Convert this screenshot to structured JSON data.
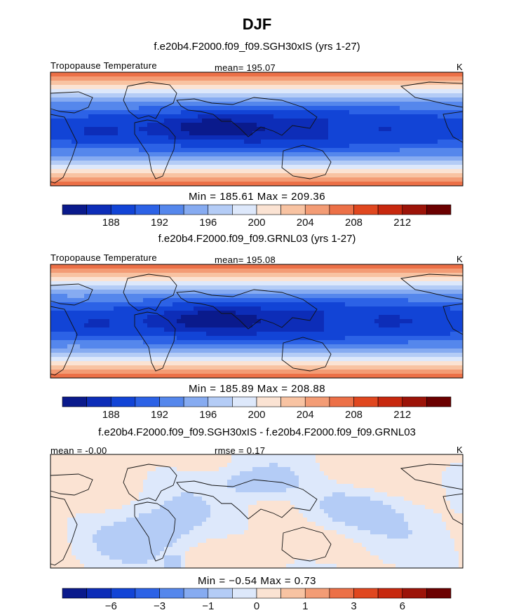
{
  "title": "DJF",
  "colors": {
    "scale": [
      "#0a1a8c",
      "#0d2db8",
      "#1244d6",
      "#2c62e6",
      "#5587ec",
      "#86abf1",
      "#b4ccf6",
      "#dde8fb",
      "#fbe3d3",
      "#f8c3a2",
      "#f39c75",
      "#ec7047",
      "#e0471f",
      "#c7280e",
      "#9c1308",
      "#6b0000"
    ]
  },
  "chart_data": [
    {
      "type": "heatmap",
      "title": "f.e20b4.F2000.f09_f09.SGH30xIS (yrs 1-27)",
      "variable": "Tropopause Temperature",
      "stat_label": "mean= 195.07",
      "units": "K",
      "min_max_text": "Min = 185.61 Max = 209.36",
      "min": 185.61,
      "max": 209.36,
      "mean": 195.07,
      "colorbar_ticks": [
        "188",
        "192",
        "196",
        "200",
        "204",
        "208",
        "212"
      ]
    },
    {
      "type": "heatmap",
      "title": "f.e20b4.F2000.f09_f09.GRNL03 (yrs 1-27)",
      "variable": "Tropopause Temperature",
      "stat_label": "mean= 195.08",
      "units": "K",
      "min_max_text": "Min = 185.89 Max = 208.88",
      "min": 185.89,
      "max": 208.88,
      "mean": 195.08,
      "colorbar_ticks": [
        "188",
        "192",
        "196",
        "200",
        "204",
        "208",
        "212"
      ]
    },
    {
      "type": "heatmap",
      "title": "f.e20b4.F2000.f09_f09.SGH30xIS - f.e20b4.F2000.f09_f09.GRNL03",
      "variable": "mean =   -0.00",
      "stat_label": "rmse =    0.17",
      "units": "K",
      "min_max_text": "Min =  −0.54 Max =   0.73",
      "min": -0.54,
      "max": 0.73,
      "mean": -0.0,
      "rmse": 0.17,
      "colorbar_ticks": [
        "−6",
        "−3",
        "−1",
        "0",
        "1",
        "3",
        "6"
      ]
    }
  ]
}
